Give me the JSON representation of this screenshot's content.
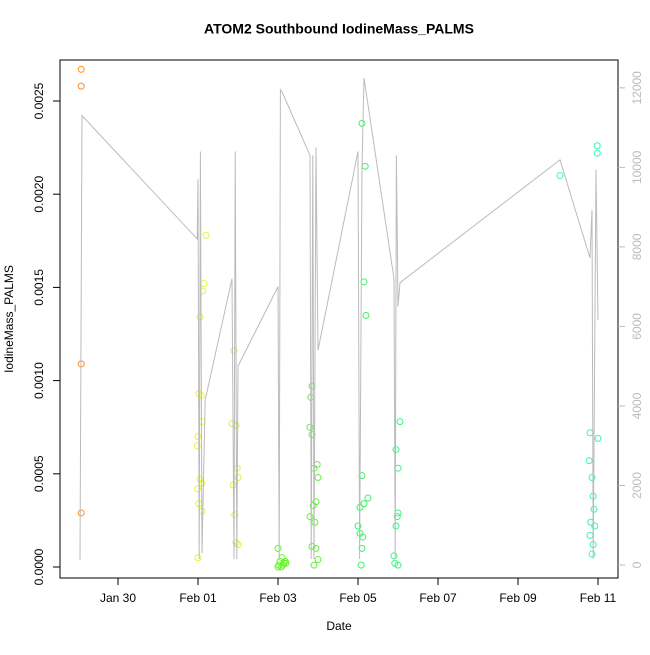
{
  "chart_data": {
    "type": "scatter",
    "title": "ATOM2 Southbound IodineMass_PALMS",
    "x_label": "Date",
    "y_label": "IodineMass_PALMS",
    "xlim": [
      28.55,
      42.5
    ],
    "xticks": [
      {
        "value": 30,
        "label": "Jan 30"
      },
      {
        "value": 32,
        "label": "Feb 01"
      },
      {
        "value": 34,
        "label": "Feb 03"
      },
      {
        "value": 36,
        "label": "Feb 05"
      },
      {
        "value": 38,
        "label": "Feb 07"
      },
      {
        "value": 40,
        "label": "Feb 09"
      },
      {
        "value": 42,
        "label": "Feb 11"
      }
    ],
    "ylim": [
      -5.9e-05,
      0.00272
    ],
    "yticks": [
      {
        "value": 0,
        "label": "0.0000"
      },
      {
        "value": 0.0005,
        "label": "0.0005"
      },
      {
        "value": 0.001,
        "label": "0.0010"
      },
      {
        "value": 0.0015,
        "label": "0.0015"
      },
      {
        "value": 0.002,
        "label": "0.0020"
      },
      {
        "value": 0.0025,
        "label": "0.0025"
      }
    ],
    "y2lim": [
      -327,
      12700
    ],
    "y2ticks": [
      0,
      2000,
      4000,
      6000,
      8000,
      10000,
      12000
    ],
    "y2_tick_color": "#bbbbbb",
    "series": [
      {
        "color": "#ff8c1a",
        "x": [
          29.08,
          29.08,
          29.08,
          29.08
        ],
        "values": [
          0.00267,
          0.00258,
          0.00109,
          0.00029
        ]
      },
      {
        "color": "#e8f53a",
        "x": [
          32.2,
          32.15,
          32.12,
          32.05,
          32.02,
          32.08,
          32.1,
          32.0,
          31.98,
          32.05,
          32.1,
          31.99,
          32.02,
          32.1,
          32.0
        ],
        "values": [
          0.00178,
          0.00152,
          0.00148,
          0.00134,
          0.00093,
          0.00092,
          0.00078,
          0.0007,
          0.00065,
          0.00047,
          0.00045,
          0.00042,
          0.00034,
          0.0003,
          5e-05
        ]
      },
      {
        "color": "#d6f53a",
        "x": [
          32.9,
          32.85,
          32.95,
          32.98,
          33.0,
          32.88,
          32.92,
          32.95,
          33.0
        ],
        "values": [
          0.00116,
          0.00077,
          0.00076,
          0.00053,
          0.00048,
          0.00044,
          0.00028,
          0.00013,
          0.00012
        ]
      },
      {
        "color": "#66f52a",
        "x": [
          34.0,
          34.1,
          34.05,
          34.15,
          34.02,
          34.2,
          34.08,
          34.12,
          34.0,
          34.18
        ],
        "values": [
          0.0001,
          5e-05,
          3e-05,
          2e-05,
          1e-05,
          2e-05,
          0.0,
          1e-05,
          0.0,
          3e-05
        ]
      },
      {
        "color": "#5ef53a",
        "x": [
          34.85,
          34.82,
          34.8,
          34.85,
          34.98,
          34.9,
          35.0,
          34.95,
          34.88,
          34.8,
          34.92,
          34.85,
          34.95,
          35.0,
          34.9
        ],
        "values": [
          0.00097,
          0.00091,
          0.00075,
          0.00071,
          0.00055,
          0.00053,
          0.00048,
          0.00035,
          0.00033,
          0.00027,
          0.00024,
          0.00011,
          0.0001,
          4e-05,
          1e-05
        ]
      },
      {
        "color": "#3af56a",
        "x": [
          36.1,
          36.18,
          36.15,
          36.2,
          36.1,
          36.25,
          36.15,
          36.05,
          36.0,
          36.05,
          36.12,
          36.1,
          36.08
        ],
        "values": [
          0.00238,
          0.00215,
          0.00153,
          0.00135,
          0.00049,
          0.00037,
          0.00034,
          0.00032,
          0.00022,
          0.00018,
          0.00016,
          0.0001,
          1e-05
        ]
      },
      {
        "color": "#3af580",
        "x": [
          37.05,
          36.95,
          37.0,
          37.0,
          36.98,
          36.95,
          36.9,
          36.92,
          37.0
        ],
        "values": [
          0.00078,
          0.00063,
          0.00053,
          0.00029,
          0.00027,
          0.00022,
          6e-05,
          2e-05,
          1e-05
        ]
      },
      {
        "color": "#3af5b4",
        "x": [
          41.05,
          41.98,
          41.98,
          41.8,
          42.0,
          41.78,
          41.85,
          41.88,
          41.9,
          41.82,
          41.92,
          41.8,
          41.88,
          41.85
        ],
        "values": [
          0.0021,
          0.00226,
          0.00222,
          0.00072,
          0.00069,
          0.00057,
          0.00048,
          0.00038,
          0.00031,
          0.00024,
          0.00022,
          0.00017,
          0.00012,
          7e-05
        ]
      },
      {
        "color": "#bbbbbb",
        "axis": "y2",
        "x": [
          29.05,
          29.1,
          31.98,
          32.0,
          32.03,
          32.06,
          32.1,
          32.18,
          32.85,
          32.9,
          32.93,
          32.97,
          33.0,
          34.0,
          34.03,
          34.06,
          34.1,
          34.8,
          34.83,
          34.87,
          34.9,
          34.95,
          35.0,
          36.0,
          36.04,
          36.1,
          36.15,
          36.9,
          36.93,
          36.96,
          37.0,
          37.05,
          41.05,
          41.8,
          41.85,
          41.88,
          41.95,
          42.0
        ],
        "values": [
          126,
          11300,
          8200,
          9700,
          150,
          10400,
          300,
          4150,
          7200,
          150,
          10400,
          150,
          5000,
          7000,
          150,
          11950,
          11900,
          10300,
          150,
          10300,
          150,
          10500,
          5400,
          10400,
          150,
          10000,
          12250,
          7200,
          150,
          10300,
          6500,
          7100,
          10190,
          7720,
          8930,
          150,
          9940,
          6160
        ]
      }
    ]
  }
}
